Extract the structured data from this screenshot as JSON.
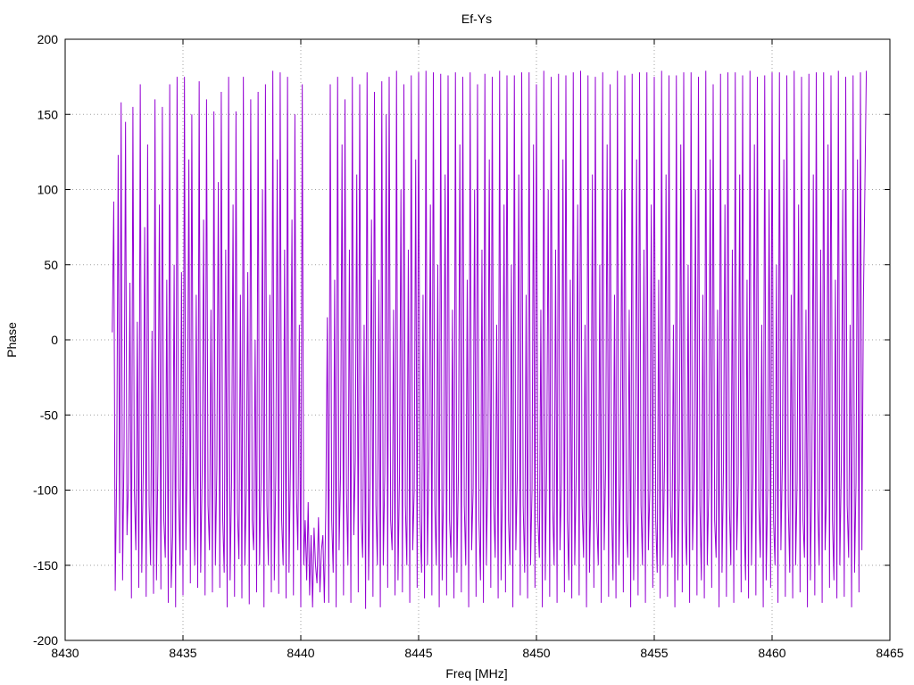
{
  "chart_data": {
    "type": "line",
    "title": "Ef-Ys",
    "xlabel": "Freq [MHz]",
    "ylabel": "Phase",
    "xlim": [
      8430,
      8465
    ],
    "ylim": [
      -200,
      200
    ],
    "xticks": [
      8430,
      8435,
      8440,
      8445,
      8450,
      8455,
      8460,
      8465
    ],
    "yticks": [
      -200,
      -150,
      -100,
      -50,
      0,
      50,
      100,
      150,
      200
    ],
    "grid": true,
    "legend": "none",
    "series": [
      {
        "color": "#9400d3",
        "x_start": 8432.0,
        "x_end": 8464.0,
        "x_step": 0.0625,
        "y": [
          5,
          92,
          -167,
          -88,
          123,
          -142,
          158,
          -160,
          -70,
          145,
          -130,
          -95,
          38,
          -172,
          155,
          -101,
          -140,
          12,
          -165,
          170,
          -155,
          -88,
          75,
          -171,
          130,
          -110,
          -150,
          6,
          -169,
          160,
          -160,
          -80,
          90,
          -166,
          155,
          -120,
          -145,
          40,
          -175,
          170,
          -165,
          -130,
          50,
          -178,
          175,
          -100,
          -150,
          45,
          -170,
          175,
          -140,
          -70,
          120,
          -162,
          150,
          -95,
          -150,
          30,
          -165,
          172,
          -155,
          -90,
          80,
          -170,
          160,
          -110,
          -140,
          20,
          -168,
          152,
          -150,
          -85,
          105,
          -165,
          165,
          -120,
          -155,
          60,
          -178,
          175,
          -160,
          -95,
          90,
          -171,
          152,
          -115,
          -146,
          30,
          -172,
          175,
          -150,
          -100,
          45,
          -176,
          160,
          -120,
          -140,
          0,
          -168,
          165,
          -150,
          -95,
          100,
          -178,
          170,
          -110,
          -150,
          30,
          -168,
          179,
          -160,
          -90,
          120,
          -169,
          178,
          -120,
          -150,
          60,
          -172,
          175,
          -155,
          -80,
          80,
          -170,
          150,
          -100,
          -140,
          10,
          -178,
          170,
          -150,
          -120,
          -160,
          -108,
          -170,
          -130,
          -178,
          -125,
          -150,
          -162,
          -118,
          -168,
          -140,
          -130,
          -175,
          -110,
          15,
          -175,
          170,
          -120,
          -155,
          40,
          -178,
          175,
          -140,
          -90,
          130,
          -170,
          160,
          -100,
          -150,
          60,
          -175,
          175,
          -130,
          -80,
          110,
          -168,
          170,
          -120,
          -145,
          10,
          -179,
          178,
          -160,
          -95,
          80,
          -171,
          165,
          -110,
          -150,
          40,
          -178,
          172,
          -150,
          -90,
          150,
          -165,
          175,
          -120,
          -140,
          20,
          -170,
          179,
          -160,
          -90,
          100,
          -168,
          170,
          -110,
          -150,
          60,
          -175,
          176,
          -140,
          -100,
          120,
          -165,
          178,
          -120,
          -155,
          30,
          -172,
          179,
          -150,
          -80,
          90,
          -170,
          178,
          -110,
          -150,
          50,
          -178,
          177,
          -160,
          -95,
          110,
          -170,
          176,
          -120,
          -145,
          20,
          -172,
          178,
          -155,
          -90,
          130,
          -168,
          175,
          -110,
          -150,
          40,
          -178,
          178,
          -140,
          -100,
          100,
          -171,
          170,
          -120,
          -160,
          60,
          -175,
          177,
          -150,
          -85,
          120,
          -165,
          175,
          -110,
          -145,
          10,
          -172,
          179,
          -160,
          -95,
          90,
          -168,
          176,
          -120,
          -150,
          50,
          -178,
          176,
          -140,
          -90,
          110,
          -170,
          178,
          -110,
          -155,
          30,
          -172,
          178,
          -150,
          -100,
          130,
          -165,
          170,
          -120,
          -145,
          20,
          -178,
          179,
          -160,
          -80,
          100,
          -171,
          175,
          -110,
          -150,
          60,
          -175,
          177,
          -140,
          -95,
          120,
          -168,
          176,
          -120,
          -160,
          40,
          -172,
          178,
          -150,
          -90,
          90,
          -170,
          179,
          -110,
          -145,
          10,
          -178,
          176,
          -155,
          -100,
          110,
          -165,
          175,
          -120,
          -150,
          50,
          -175,
          178,
          -140,
          -85,
          130,
          -171,
          170,
          -110,
          -160,
          30,
          -172,
          179,
          -150,
          -95,
          100,
          -168,
          176,
          -120,
          -145,
          20,
          -178,
          177,
          -160,
          -90,
          120,
          -170,
          178,
          -110,
          -150,
          60,
          -175,
          178,
          -140,
          -100,
          90,
          -165,
          175,
          -120,
          -155,
          40,
          -172,
          179,
          -150,
          -80,
          110,
          -171,
          176,
          -110,
          -145,
          10,
          -178,
          176,
          -160,
          -95,
          130,
          -168,
          178,
          -120,
          -150,
          50,
          -175,
          178,
          -140,
          -90,
          100,
          -170,
          175,
          -110,
          -160,
          30,
          -172,
          179,
          -150,
          -100,
          120,
          -165,
          170,
          -120,
          -145,
          20,
          -178,
          177,
          -155,
          -85,
          90,
          -171,
          178,
          -110,
          -150,
          60,
          -175,
          178,
          -140,
          -95,
          110,
          -168,
          176,
          -120,
          -160,
          40,
          -172,
          179,
          -150,
          -90,
          130,
          -170,
          175,
          -110,
          -145,
          10,
          -178,
          176,
          -160,
          -100,
          100,
          -165,
          178,
          -120,
          -150,
          50,
          -175,
          178,
          -140,
          -80,
          120,
          -171,
          176,
          -110,
          -155,
          30,
          -172,
          179,
          -150,
          -95,
          90,
          -168,
          175,
          -120,
          -145,
          20,
          -178,
          177,
          -160,
          -90,
          110,
          -170,
          178,
          -110,
          -150,
          60,
          -175,
          178,
          -140,
          -100,
          130,
          -165,
          176,
          -120,
          -160,
          40,
          -172,
          179,
          -150,
          -85,
          100,
          -171,
          175,
          -110,
          -145,
          10,
          -178,
          176,
          -155,
          -95,
          120,
          -168,
          178,
          -140,
          25,
          100,
          179
        ]
      }
    ]
  }
}
